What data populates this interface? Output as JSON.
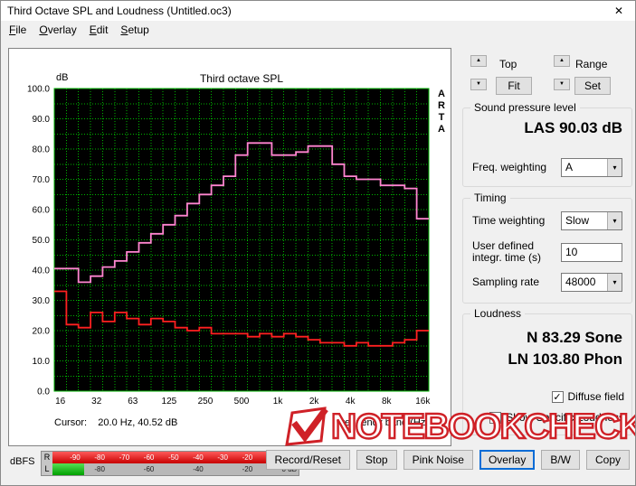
{
  "window": {
    "title": "Third Octave SPL and Loudness (Untitled.oc3)",
    "close_glyph": "✕"
  },
  "menu": {
    "items": [
      "File",
      "Overlay",
      "Edit",
      "Setup"
    ]
  },
  "icons": {
    "spin_up": "▲",
    "spin_down": "▼",
    "combo_arrow": "▾",
    "check": "✓"
  },
  "chart": {
    "cursor_text": "Cursor:    20.0 Hz, 40.52 dB",
    "brand_vertical": [
      "A",
      "R",
      "T",
      "A"
    ]
  },
  "chart_data": {
    "type": "line",
    "title": "Third octave SPL",
    "ylabel": "dB",
    "xlabel": "Frequency band (Hz)",
    "ylim": [
      0,
      100
    ],
    "ytick_step": 10,
    "y_minor_step": 5,
    "grid_color": "#00b400",
    "plot_bg": "#000000",
    "legend_position": "none",
    "x_tick_labels": [
      "16",
      "32",
      "63",
      "125",
      "250",
      "500",
      "1k",
      "2k",
      "4k",
      "8k",
      "16k"
    ],
    "bands": [
      "16",
      "20",
      "25",
      "31.5",
      "40",
      "50",
      "63",
      "80",
      "100",
      "125",
      "160",
      "200",
      "250",
      "315",
      "400",
      "500",
      "630",
      "800",
      "1k",
      "1.25k",
      "1.6k",
      "2k",
      "2.5k",
      "3.15k",
      "4k",
      "5k",
      "6.3k",
      "8k",
      "10k",
      "12.5k",
      "16k"
    ],
    "series": [
      {
        "name": "third-octave-spl",
        "color": "#ff85d0",
        "values": [
          40.5,
          40.5,
          36,
          38,
          41,
          43,
          46,
          49,
          52,
          55,
          58,
          62,
          65,
          68,
          71,
          78,
          82,
          82,
          78,
          78,
          79,
          81,
          81,
          75,
          71,
          70,
          70,
          68,
          68,
          67,
          57
        ]
      },
      {
        "name": "overlay-noise-floor",
        "color": "#ff2020",
        "values": [
          33,
          22,
          21,
          26,
          23,
          26,
          24,
          22,
          24,
          23,
          21,
          20,
          21,
          19,
          19,
          19,
          18,
          19,
          18,
          19,
          18,
          17,
          16,
          16,
          15,
          16,
          15,
          15,
          16,
          17,
          20
        ]
      }
    ]
  },
  "right_panel": {
    "top_label": "Top",
    "range_label": "Range",
    "fit_button": "Fit",
    "set_button": "Set",
    "spl_group": {
      "title": "Sound pressure level",
      "value": "LAS 90.03 dB",
      "freq_weighting_label": "Freq. weighting",
      "freq_weighting_value": "A"
    },
    "timing_group": {
      "title": "Timing",
      "time_weighting_label": "Time weighting",
      "time_weighting_value": "Slow",
      "integr_label_line1": "User defined",
      "integr_label_line2": "integr. time (s)",
      "integr_value": "10",
      "sampling_label": "Sampling rate",
      "sampling_value": "48000"
    },
    "loudness_group": {
      "title": "Loudness",
      "n_value": "N 83.29 Sone",
      "ln_value": "LN 103.80 Phon",
      "diffuse_label": "Diffuse field",
      "diffuse_checked": true,
      "show_specific_label": "Show Specific Loudness",
      "show_specific_checked": false
    }
  },
  "bottom": {
    "dbfs_label": "dBFS",
    "meter": {
      "r_label": "R",
      "l_label": "L",
      "r_fill_pct": 100,
      "l_fill_pct": 13,
      "r_scale": [
        {
          "value": -90,
          "text": "-90"
        },
        {
          "value": -80,
          "text": "-80"
        },
        {
          "value": -70,
          "text": "-70"
        },
        {
          "value": -60,
          "text": "-60"
        },
        {
          "value": -50,
          "text": "-50"
        },
        {
          "value": -40,
          "text": "-40"
        },
        {
          "value": -30,
          "text": "-30"
        },
        {
          "value": -20,
          "text": "-20"
        }
      ],
      "l_scale": [
        {
          "value": -80,
          "text": "-80"
        },
        {
          "value": -60,
          "text": "-60"
        },
        {
          "value": -40,
          "text": "-40"
        },
        {
          "value": -20,
          "text": "-20"
        },
        {
          "value": 0,
          "text": "0 dB"
        }
      ]
    },
    "buttons": [
      {
        "label": "Record/Reset",
        "focused": false
      },
      {
        "label": "Stop",
        "focused": false
      },
      {
        "label": "Pink Noise",
        "focused": false
      },
      {
        "label": "Overlay",
        "focused": true
      },
      {
        "label": "B/W",
        "focused": false
      },
      {
        "label": "Copy",
        "focused": false
      }
    ]
  },
  "watermark": {
    "text": "NOTEBOOKCHECK",
    "color": "#cf2127"
  }
}
